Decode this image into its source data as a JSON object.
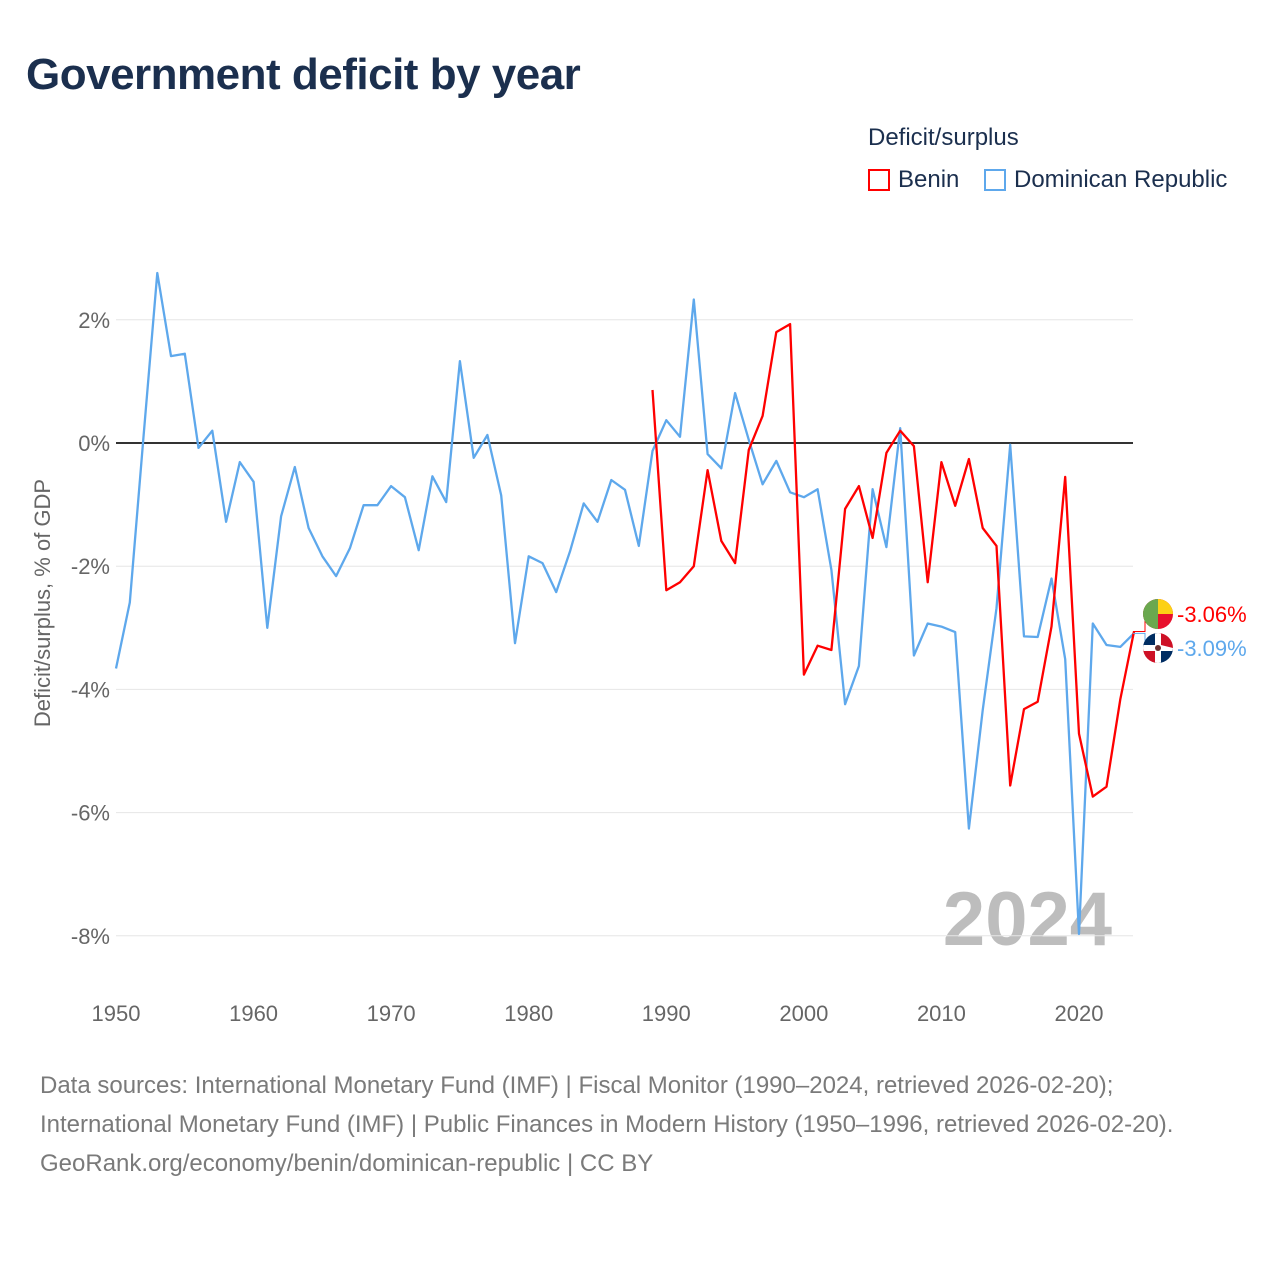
{
  "title": "Government deficit by year",
  "legend": {
    "title": "Deficit/surplus",
    "items": [
      {
        "name": "Benin",
        "color": "#ff0000"
      },
      {
        "name": "Dominican Republic",
        "color": "#5ea8ec"
      }
    ]
  },
  "footer": {
    "sources": "Data sources: International Monetary Fund (IMF) | Fiscal Monitor (1990–2024, retrieved 2026-02-20); International Monetary Fund (IMF) | Public Finances in Modern History (1950–1996, retrieved 2026-02-20).",
    "link": "GeoRank.org/economy/benin/dominican-republic | CC BY"
  },
  "chart_data": {
    "type": "line",
    "title": "Government deficit by year",
    "xlabel": "",
    "ylabel": "Deficit/surplus, % of GDP",
    "xlim": [
      1950,
      2024
    ],
    "ylim": [
      -8.5,
      3
    ],
    "x_ticks": [
      1950,
      1960,
      1970,
      1980,
      1990,
      2000,
      2010,
      2020
    ],
    "x_tick_labels": [
      "1950",
      "1960",
      "1970",
      "1980",
      "1990",
      "2000",
      "2010",
      "2020"
    ],
    "y_ticks": [
      2,
      0,
      -2,
      -4,
      -6,
      -8
    ],
    "y_tick_labels": [
      "2%",
      "0%",
      "-2%",
      "-4%",
      "-6%",
      "-8%"
    ],
    "grid": true,
    "legend_position": "top-right",
    "year_watermark": "2024",
    "series": [
      {
        "name": "Benin",
        "color": "#ff0000",
        "start_year": 1989,
        "end_label": "-3.06%",
        "flag": "benin",
        "values": [
          0.86,
          -2.39,
          -2.26,
          -2.0,
          -0.44,
          -1.59,
          -1.95,
          -0.11,
          0.44,
          1.8,
          1.93,
          -3.76,
          -3.29,
          -3.36,
          -1.07,
          -0.7,
          -1.54,
          -0.16,
          0.2,
          -0.05,
          -2.26,
          -0.31,
          -1.02,
          -0.26,
          -1.38,
          -1.67,
          -5.56,
          -4.32,
          -4.2,
          -2.98,
          -0.55,
          -4.72,
          -5.74,
          -5.58,
          -4.16,
          -3.06
        ]
      },
      {
        "name": "Dominican Republic",
        "color": "#5ea8ec",
        "start_year": 1950,
        "end_label": "-3.09%",
        "flag": "dominican-republic",
        "values": [
          -3.66,
          -2.59,
          0.1,
          2.76,
          1.41,
          1.45,
          -0.08,
          0.2,
          -1.28,
          -0.31,
          -0.63,
          -3.0,
          -1.19,
          -0.39,
          -1.38,
          -1.84,
          -2.16,
          -1.71,
          -1.01,
          -1.01,
          -0.7,
          -0.88,
          -1.74,
          -0.54,
          -0.96,
          1.33,
          -0.24,
          0.13,
          -0.85,
          -3.25,
          -1.84,
          -1.95,
          -2.42,
          -1.76,
          -0.98,
          -1.28,
          -0.6,
          -0.76,
          -1.67,
          -0.13,
          0.37,
          0.1,
          2.33,
          -0.18,
          -0.41,
          0.81,
          0.05,
          -0.67,
          -0.29,
          -0.8,
          -0.88,
          -0.75,
          -2.06,
          -4.24,
          -3.62,
          -0.75,
          -1.69,
          0.24,
          -3.45,
          -2.93,
          -2.98,
          -3.07,
          -6.26,
          -4.34,
          -2.68,
          -0.03,
          -3.14,
          -3.15,
          -2.2,
          -3.51,
          -7.97,
          -2.93,
          -3.28,
          -3.31,
          -3.09
        ]
      }
    ]
  }
}
